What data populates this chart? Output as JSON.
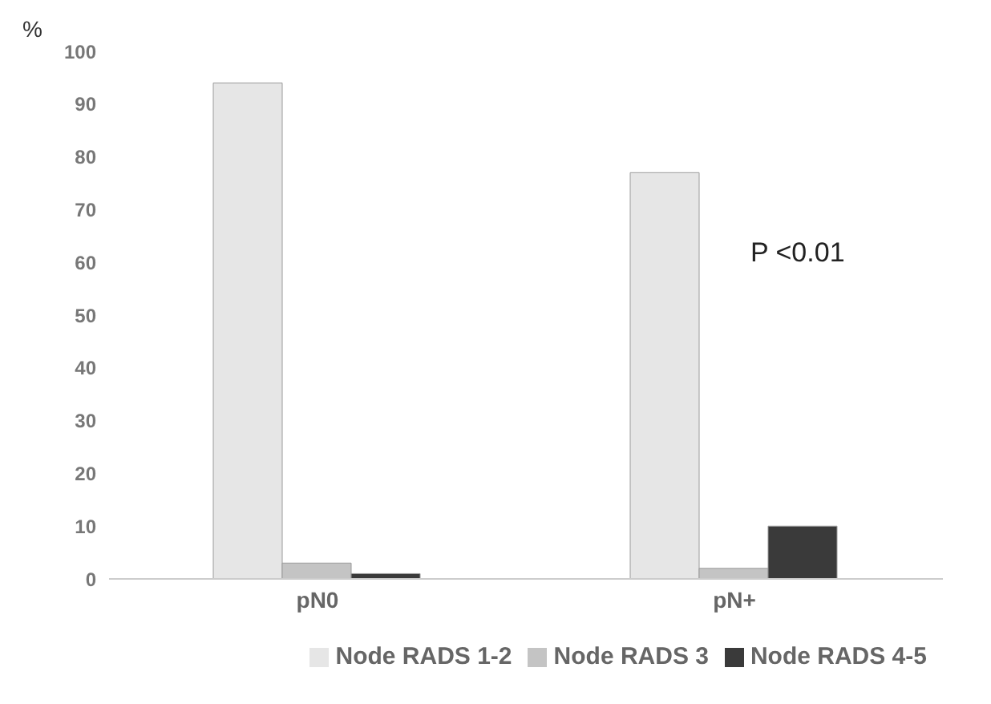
{
  "chart_data": {
    "type": "bar",
    "ylabel": "%",
    "categories": [
      "pN0",
      "pN+"
    ],
    "series": [
      {
        "name": "Node RADS 1-2",
        "color": "#e6e6e6",
        "values": [
          94,
          77
        ]
      },
      {
        "name": "Node RADS 3",
        "color": "#c4c4c4",
        "values": [
          3,
          2
        ]
      },
      {
        "name": "Node RADS 4-5",
        "color": "#3a3a3a",
        "values": [
          1,
          10
        ]
      }
    ],
    "ylim": [
      0,
      100
    ],
    "yticks": [
      0,
      10,
      20,
      30,
      40,
      50,
      60,
      70,
      80,
      90,
      100
    ],
    "grid": false,
    "legend": "bottom",
    "annotations": [
      "P <0.01"
    ]
  }
}
